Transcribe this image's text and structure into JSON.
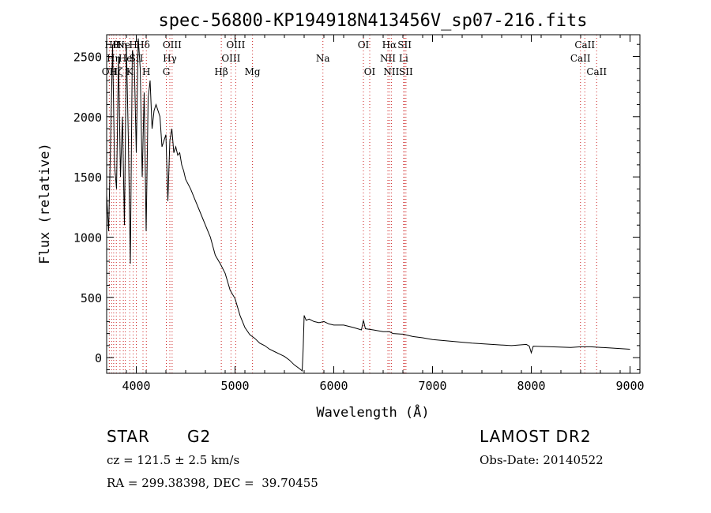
{
  "title": "spec-56800-KP194918N413456V_sp07-216.fits",
  "info": {
    "class_label": "STAR",
    "subclass_label": "G2",
    "survey": "LAMOST DR2",
    "cz": "cz = 121.5 ± 2.5 km/s",
    "obs_date": "Obs-Date: 20140522",
    "coords": "RA = 299.38398, DEC =  39.70455"
  },
  "chart_data": {
    "type": "line",
    "title": "spec-56800-KP194918N413456V_sp07-216.fits",
    "xlabel": "Wavelength (Å)",
    "ylabel": "Flux (relative)",
    "xlim": [
      3700,
      9100
    ],
    "ylim": [
      -130,
      2680
    ],
    "xticks": [
      4000,
      5000,
      6000,
      7000,
      8000,
      9000
    ],
    "yticks": [
      0,
      500,
      1000,
      1500,
      2000,
      2500
    ],
    "line_color": "#000000",
    "marker_color": "#cc2222",
    "spectrum": {
      "wavelength": [
        3700,
        3720,
        3740,
        3760,
        3780,
        3800,
        3820,
        3840,
        3860,
        3880,
        3900,
        3920,
        3940,
        3960,
        3980,
        4000,
        4020,
        4040,
        4060,
        4080,
        4100,
        4120,
        4140,
        4160,
        4180,
        4200,
        4220,
        4240,
        4260,
        4280,
        4300,
        4320,
        4340,
        4360,
        4380,
        4400,
        4420,
        4440,
        4460,
        4480,
        4500,
        4550,
        4600,
        4650,
        4700,
        4750,
        4800,
        4850,
        4900,
        4950,
        5000,
        5050,
        5100,
        5150,
        5200,
        5250,
        5300,
        5350,
        5400,
        5450,
        5500,
        5550,
        5600,
        5650,
        5680,
        5690,
        5700,
        5720,
        5750,
        5800,
        5850,
        5900,
        5950,
        6000,
        6100,
        6200,
        6280,
        6300,
        6320,
        6400,
        6500,
        6563,
        6600,
        6700,
        6800,
        6900,
        7000,
        7200,
        7400,
        7600,
        7800,
        7950,
        7980,
        8000,
        8020,
        8200,
        8400,
        8500,
        8600,
        8800,
        9000
      ],
      "flux": [
        1350,
        1050,
        1800,
        2600,
        1600,
        1400,
        2500,
        1500,
        2000,
        1100,
        2600,
        1800,
        780,
        2550,
        2450,
        1700,
        2650,
        2400,
        1500,
        2200,
        1050,
        2150,
        2300,
        1900,
        2050,
        2100,
        2050,
        2000,
        1750,
        1800,
        1850,
        1300,
        1800,
        1900,
        1700,
        1750,
        1680,
        1700,
        1600,
        1550,
        1480,
        1400,
        1300,
        1200,
        1100,
        1000,
        850,
        780,
        700,
        560,
        490,
        350,
        250,
        190,
        160,
        120,
        100,
        70,
        50,
        30,
        10,
        -20,
        -60,
        -90,
        -110,
        80,
        350,
        310,
        320,
        300,
        290,
        300,
        280,
        270,
        270,
        250,
        230,
        310,
        240,
        230,
        215,
        215,
        200,
        195,
        175,
        165,
        150,
        135,
        120,
        110,
        100,
        110,
        95,
        40,
        95,
        90,
        85,
        90,
        90,
        80,
        70
      ]
    },
    "lines": [
      {
        "wl": 3727,
        "labels": [
          "OII"
        ],
        "level": 3
      },
      {
        "wl": 3750,
        "labels": [
          "Hθ"
        ],
        "level": 1
      },
      {
        "wl": 3771,
        "labels": [
          "Hη"
        ],
        "level": 2
      },
      {
        "wl": 3798,
        "labels": [
          "Hζ"
        ],
        "level": 3
      },
      {
        "wl": 3835,
        "labels": [
          "Hη"
        ],
        "level": 1
      },
      {
        "wl": 3869,
        "labels": [
          "Ne"
        ],
        "level": 1
      },
      {
        "wl": 3889,
        "labels": [
          "He"
        ],
        "level": 2
      },
      {
        "wl": 3934,
        "labels": [
          "K"
        ],
        "level": 3
      },
      {
        "wl": 3969,
        "labels": [
          "H"
        ],
        "level": 1
      },
      {
        "wl": 4000,
        "labels": [
          "SII"
        ],
        "level": 2
      },
      {
        "wl": 4068,
        "labels": [
          "Hδ"
        ],
        "level": 1
      },
      {
        "wl": 4102,
        "labels": [
          "H"
        ],
        "level": 3
      },
      {
        "wl": 4304,
        "labels": [
          "G"
        ],
        "level": 3
      },
      {
        "wl": 4340,
        "labels": [
          "Hγ"
        ],
        "level": 2
      },
      {
        "wl": 4363,
        "labels": [
          "OIII"
        ],
        "level": 1
      },
      {
        "wl": 4861,
        "labels": [
          "Hβ"
        ],
        "level": 3
      },
      {
        "wl": 4959,
        "labels": [
          "OIII"
        ],
        "level": 2
      },
      {
        "wl": 5007,
        "labels": [
          "OIII"
        ],
        "level": 1
      },
      {
        "wl": 5177,
        "labels": [
          "Mg"
        ],
        "level": 3
      },
      {
        "wl": 5890,
        "labels": [
          "Na"
        ],
        "level": 2
      },
      {
        "wl": 6300,
        "labels": [
          "OI"
        ],
        "level": 1
      },
      {
        "wl": 6364,
        "labels": [
          "OI"
        ],
        "level": 3
      },
      {
        "wl": 6548,
        "labels": [
          "NII"
        ],
        "level": 2
      },
      {
        "wl": 6563,
        "labels": [
          "Hα"
        ],
        "level": 1
      },
      {
        "wl": 6583,
        "labels": [
          "NII"
        ],
        "level": 3
      },
      {
        "wl": 6707,
        "labels": [
          "Li"
        ],
        "level": 2
      },
      {
        "wl": 6717,
        "labels": [
          "SII"
        ],
        "level": 1
      },
      {
        "wl": 6731,
        "labels": [
          "SII"
        ],
        "level": 3
      },
      {
        "wl": 8498,
        "labels": [
          "CaII"
        ],
        "level": 2
      },
      {
        "wl": 8542,
        "labels": [
          "CaII"
        ],
        "level": 1
      },
      {
        "wl": 8662,
        "labels": [
          "CaII"
        ],
        "level": 3
      }
    ]
  }
}
